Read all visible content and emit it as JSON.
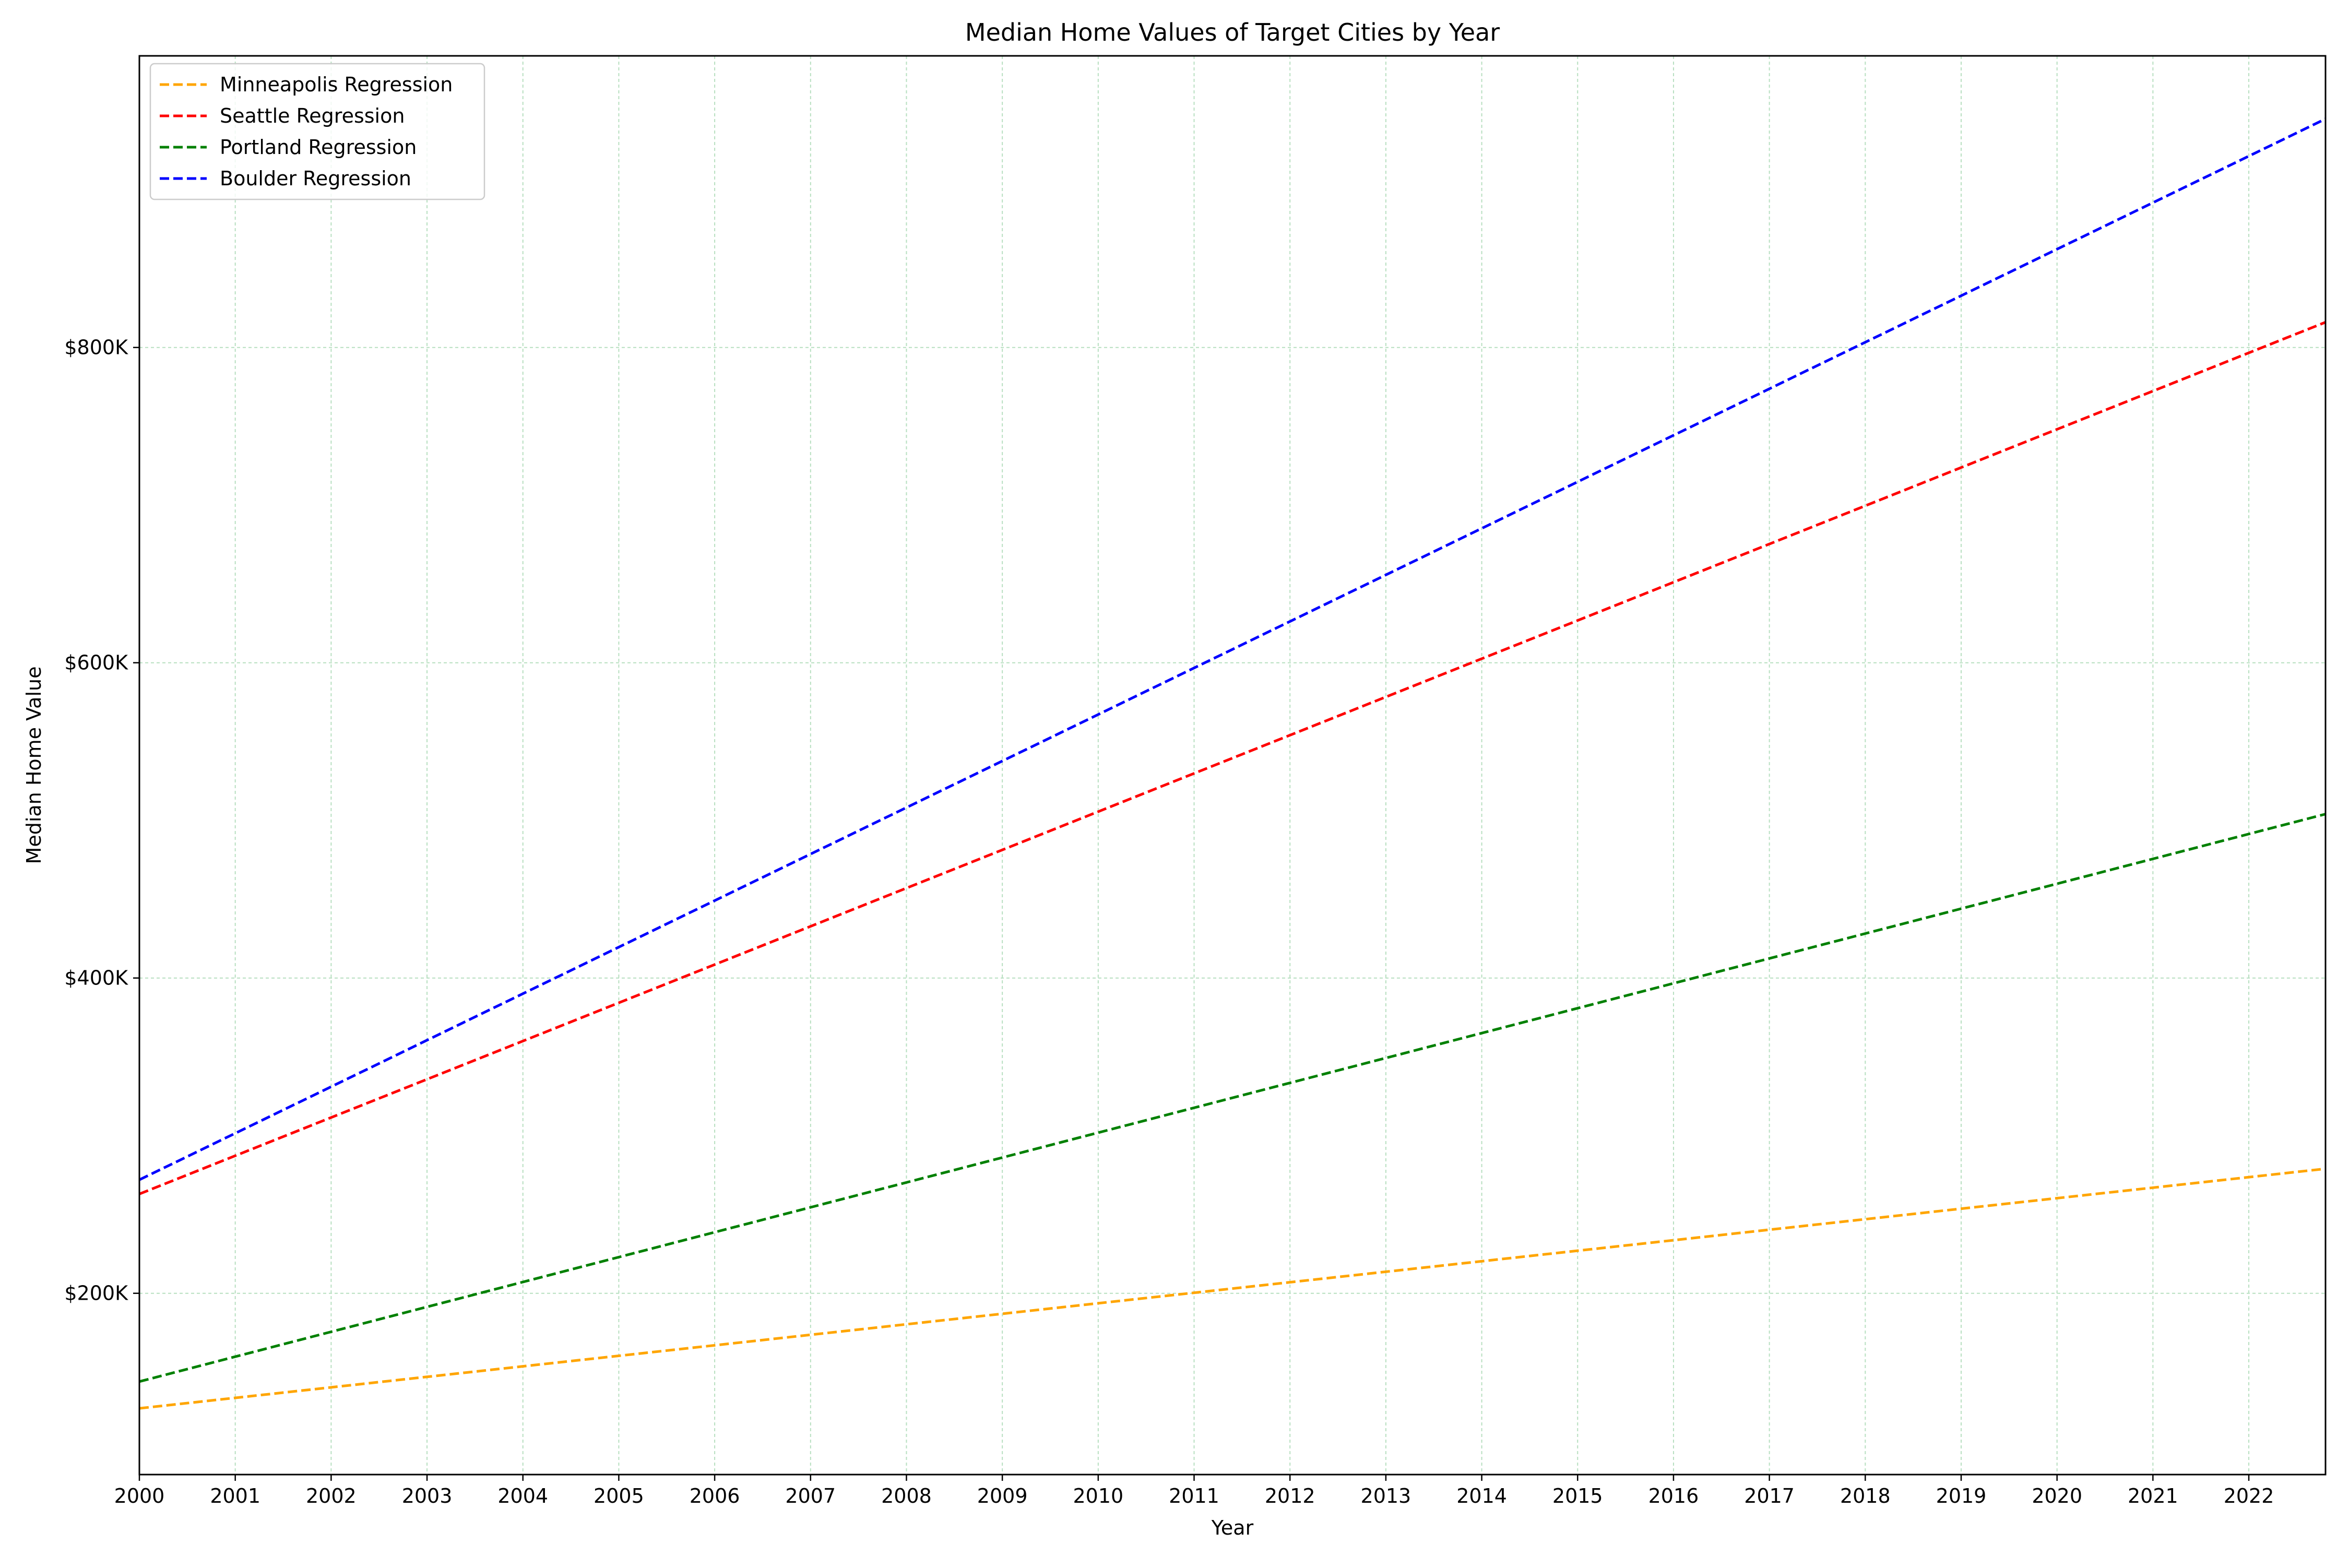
{
  "chart_data": {
    "type": "line",
    "title": "Median Home Values of Target Cities by Year",
    "xlabel": "Year",
    "ylabel": "Median Home Value",
    "xlim": [
      2000,
      2022.8
    ],
    "ylim": [
      85000,
      985000
    ],
    "x_ticks": [
      2000,
      2001,
      2002,
      2003,
      2004,
      2005,
      2006,
      2007,
      2008,
      2009,
      2010,
      2011,
      2012,
      2013,
      2014,
      2015,
      2016,
      2017,
      2018,
      2019,
      2020,
      2021,
      2022
    ],
    "x_tick_labels": [
      "2000",
      "2001",
      "2002",
      "2003",
      "2004",
      "2005",
      "2006",
      "2007",
      "2008",
      "2009",
      "2010",
      "2011",
      "2012",
      "2013",
      "2014",
      "2015",
      "2016",
      "2017",
      "2018",
      "2019",
      "2020",
      "2021",
      "2022"
    ],
    "y_ticks": [
      200000,
      400000,
      600000,
      800000
    ],
    "y_tick_labels": [
      "$200K",
      "$400K",
      "$600K",
      "$800K"
    ],
    "grid": true,
    "grid_color": "#b7dfc0",
    "legend_position": "upper-left",
    "series": [
      {
        "name": "Minneapolis Regression",
        "color": "#ffa500",
        "style": "dashed",
        "x": [
          2000,
          2022.8
        ],
        "y": [
          127000,
          279000
        ]
      },
      {
        "name": "Seattle Regression",
        "color": "#ff0000",
        "style": "dashed",
        "x": [
          2000,
          2022.8
        ],
        "y": [
          263000,
          816000
        ]
      },
      {
        "name": "Portland Regression",
        "color": "#008000",
        "style": "dashed",
        "x": [
          2000,
          2022.8
        ],
        "y": [
          144000,
          504000
        ]
      },
      {
        "name": "Boulder Regression",
        "color": "#0000ff",
        "style": "dashed",
        "x": [
          2000,
          2022.8
        ],
        "y": [
          272000,
          945000
        ]
      }
    ]
  }
}
